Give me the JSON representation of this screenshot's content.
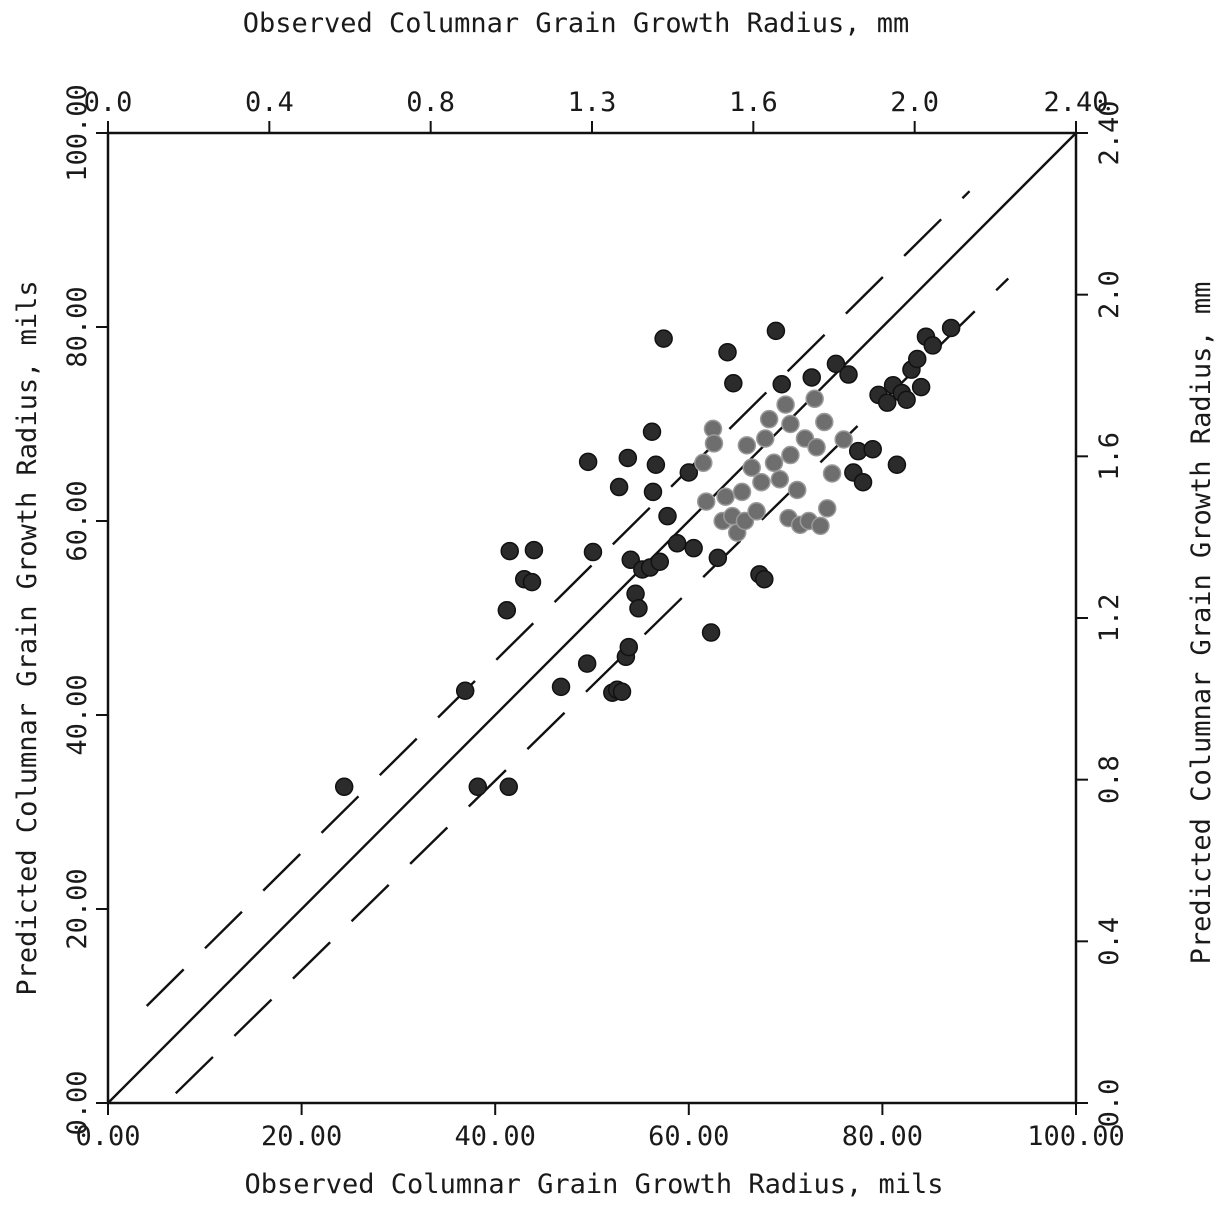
{
  "chart_data": {
    "type": "scatter",
    "title": "",
    "xlabel": "Observed Columnar Grain Growth Radius, mils",
    "ylabel": "Predicted Columnar Grain Growth Radius, mils",
    "x2label": "Observed Columnar Grain Growth Radius, mm",
    "y2label": "Predicted Columnar Grain Growth Radius, mm",
    "xlim": [
      0,
      100
    ],
    "ylim": [
      0,
      100
    ],
    "x_ticks": [
      "0.00",
      "20.00",
      "40.00",
      "60.00",
      "80.00",
      "100.00"
    ],
    "y_ticks": [
      "0.00",
      "20.00",
      "40.00",
      "60.00",
      "80.00",
      "100.00"
    ],
    "x2_ticks": [
      "0.0",
      "0.4",
      "0.8",
      "1.3",
      "1.6",
      "2.0",
      "2.40"
    ],
    "y2_ticks": [
      "0.0",
      "0.4",
      "0.8",
      "1.2",
      "1.6",
      "2.0",
      "2.40"
    ],
    "grid": false,
    "reference_lines": [
      {
        "style": "solid",
        "x": [
          0,
          100
        ],
        "y": [
          0,
          100
        ]
      },
      {
        "style": "dashed",
        "x": [
          4,
          89
        ],
        "y": [
          10,
          94
        ]
      },
      {
        "style": "dashed",
        "x": [
          7,
          93
        ],
        "y": [
          1,
          85
        ]
      }
    ],
    "series": [
      {
        "points": [
          [
            24.4,
            32.6
          ],
          [
            36.9,
            42.5
          ],
          [
            38.2,
            32.6
          ],
          [
            41.4,
            32.6
          ],
          [
            41.2,
            50.8
          ],
          [
            41.5,
            56.9
          ],
          [
            43.0,
            54.0
          ],
          [
            43.8,
            53.7
          ],
          [
            44.0,
            57.0
          ],
          [
            46.8,
            42.9
          ],
          [
            49.5,
            45.3
          ],
          [
            49.6,
            66.1
          ],
          [
            50.1,
            56.8
          ],
          [
            52.1,
            42.3
          ],
          [
            52.6,
            42.6
          ],
          [
            53.1,
            42.4
          ],
          [
            52.8,
            63.5
          ],
          [
            53.5,
            46.0
          ],
          [
            53.8,
            47.0
          ],
          [
            53.7,
            66.5
          ],
          [
            54.0,
            56.0
          ],
          [
            54.5,
            52.5
          ],
          [
            54.8,
            51.0
          ],
          [
            55.2,
            55.0
          ],
          [
            56.0,
            55.2
          ],
          [
            56.2,
            69.2
          ],
          [
            56.3,
            63.0
          ],
          [
            56.6,
            65.8
          ],
          [
            57.0,
            55.8
          ],
          [
            57.4,
            78.8
          ],
          [
            57.8,
            60.5
          ],
          [
            58.8,
            57.7
          ],
          [
            60.0,
            65.0
          ],
          [
            60.5,
            57.2
          ],
          [
            61.5,
            66.0
          ],
          [
            61.8,
            62.0
          ],
          [
            62.3,
            48.5
          ],
          [
            62.5,
            69.5
          ],
          [
            62.6,
            68.0
          ],
          [
            63.0,
            56.2
          ],
          [
            63.5,
            60.0
          ],
          [
            63.8,
            62.5
          ],
          [
            64.0,
            77.4
          ],
          [
            64.5,
            60.5
          ],
          [
            64.6,
            74.2
          ],
          [
            65.0,
            58.8
          ],
          [
            65.5,
            63.0
          ],
          [
            65.8,
            60.0
          ],
          [
            66.0,
            67.8
          ],
          [
            66.5,
            65.5
          ],
          [
            67.0,
            61.0
          ],
          [
            67.3,
            54.5
          ],
          [
            67.5,
            64.0
          ],
          [
            67.8,
            54.0
          ],
          [
            67.9,
            68.5
          ],
          [
            68.3,
            70.5
          ],
          [
            68.8,
            66.0
          ],
          [
            69.0,
            79.6
          ],
          [
            69.4,
            64.3
          ],
          [
            69.6,
            74.1
          ],
          [
            70.0,
            72.0
          ],
          [
            70.3,
            60.3
          ],
          [
            70.5,
            70.0
          ],
          [
            70.5,
            66.8
          ],
          [
            71.2,
            63.2
          ],
          [
            71.5,
            59.6
          ],
          [
            72.0,
            68.5
          ],
          [
            72.4,
            60.0
          ],
          [
            72.7,
            74.8
          ],
          [
            73.0,
            72.6
          ],
          [
            73.2,
            67.6
          ],
          [
            73.6,
            59.5
          ],
          [
            74.0,
            70.2
          ],
          [
            74.3,
            61.3
          ],
          [
            74.8,
            64.9
          ],
          [
            75.2,
            76.2
          ],
          [
            76.0,
            68.4
          ],
          [
            76.5,
            75.1
          ],
          [
            77.0,
            65.0
          ],
          [
            77.5,
            67.2
          ],
          [
            78.0,
            64.0
          ],
          [
            79.0,
            67.4
          ],
          [
            79.6,
            73.0
          ],
          [
            80.5,
            72.2
          ],
          [
            81.1,
            74.0
          ],
          [
            81.5,
            65.8
          ],
          [
            82.0,
            73.2
          ],
          [
            82.5,
            72.5
          ],
          [
            83.0,
            75.6
          ],
          [
            83.6,
            76.7
          ],
          [
            84.0,
            73.8
          ],
          [
            84.5,
            79.0
          ],
          [
            85.2,
            78.1
          ],
          [
            87.1,
            79.9
          ]
        ]
      }
    ]
  }
}
